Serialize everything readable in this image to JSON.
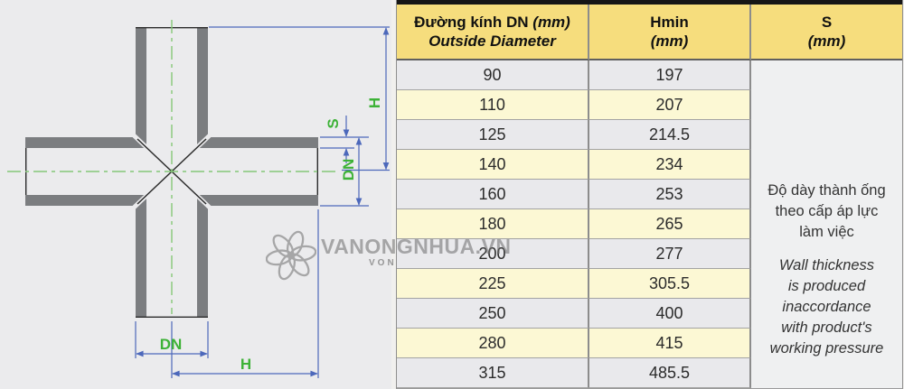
{
  "diagram": {
    "labels": {
      "h": "H",
      "s": "S",
      "dn": "DN"
    }
  },
  "watermark": {
    "text": "VANONGNHUA.VN",
    "sub": "VON"
  },
  "table": {
    "columns": [
      {
        "title": "Đường kính DN",
        "title_unit": "(mm)",
        "subtitle": "Outside Diameter"
      },
      {
        "title": "Hmin",
        "title_unit": "(mm)"
      },
      {
        "title": "S",
        "title_unit": "(mm)"
      }
    ],
    "rows": [
      {
        "dn": "90",
        "hmin": "197"
      },
      {
        "dn": "110",
        "hmin": "207"
      },
      {
        "dn": "125",
        "hmin": "214.5"
      },
      {
        "dn": "140",
        "hmin": "234"
      },
      {
        "dn": "160",
        "hmin": "253"
      },
      {
        "dn": "180",
        "hmin": "265"
      },
      {
        "dn": "200",
        "hmin": "277"
      },
      {
        "dn": "225",
        "hmin": "305.5"
      },
      {
        "dn": "250",
        "hmin": "400"
      },
      {
        "dn": "280",
        "hmin": "415"
      },
      {
        "dn": "315",
        "hmin": "485.5"
      }
    ],
    "s_note_vi": "Độ dày thành ống\ntheo cấp áp lực\nlàm việc",
    "s_note_en": "Wall thickness\nis produced\ninaccordance\nwith product's\nworking pressure"
  },
  "colors": {
    "header_yellow": "#f6dd7d",
    "row_yellow": "#fcf8d4",
    "row_grey": "#e9e9ec",
    "pipe_grey": "#7b7d80",
    "dimension_blue": "#4c68bb",
    "label_green": "#3db237",
    "centerline_green": "#85c878"
  }
}
